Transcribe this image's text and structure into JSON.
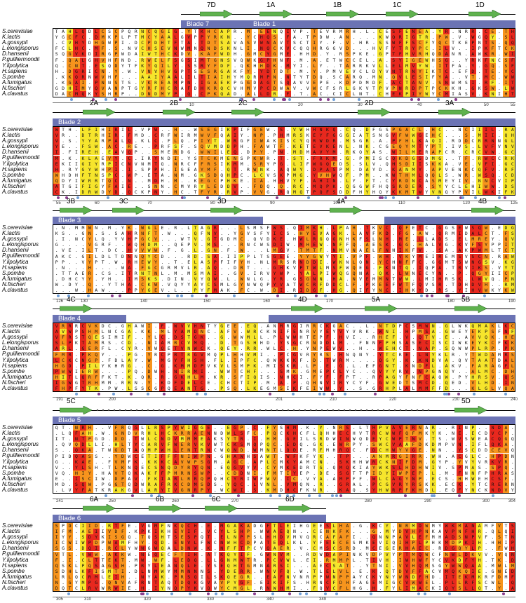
{
  "species": [
    "S.cerevisiae",
    "K.lactis",
    "A.gossypii",
    "L.elongisporus",
    "D.hansenii",
    "P.guilliermondii",
    "Y.lipolytica",
    "H.sapiens",
    "S.pombe",
    "A.fumigatus",
    "N.fischeri",
    "A.clavatus"
  ],
  "colors": {
    "red": "#e8281e",
    "orange": "#f7941d",
    "yellow": "#f6e52c",
    "white": "#ffffff",
    "blade": "#6b73b4",
    "arrow": "#5fb24e",
    "dot_blue": "#6f9fd8",
    "dot_purple": "#8a3d8f"
  },
  "panels": [
    {
      "strands": [
        {
          "label": "7D",
          "x": 285
        },
        {
          "label": "1A",
          "x": 370
        },
        {
          "label": "1B",
          "x": 465
        },
        {
          "label": "1C",
          "x": 550
        },
        {
          "label": "1D",
          "x": 668
        }
      ],
      "blades": [
        {
          "label": "Blade 7",
          "x": 258,
          "w": 95
        },
        {
          "label": "Blade 1",
          "x": 353,
          "w": 382
        }
      ],
      "ticks": [
        {
          "label": "10",
          "x": 270
        },
        {
          "label": "20",
          "x": 425
        },
        {
          "label": "30",
          "x": 510
        },
        {
          "label": "40",
          "x": 595
        },
        {
          "label": "50",
          "x": 690
        },
        {
          "label": "55",
          "x": 728
        }
      ],
      "seed": 11
    },
    {
      "strands": [
        {
          "label": "2A",
          "x": 118
        },
        {
          "label": "2B",
          "x": 232
        },
        {
          "label": "2C",
          "x": 330
        },
        {
          "label": "2D",
          "x": 510
        },
        {
          "label": "3A",
          "x": 625
        }
      ],
      "blades": [
        {
          "label": "Blade 2",
          "x": 75,
          "w": 660
        }
      ],
      "ticks": [
        {
          "label": "55",
          "x": 80
        },
        {
          "label": "60",
          "x": 135
        },
        {
          "label": "70",
          "x": 210
        },
        {
          "label": "80",
          "x": 300
        },
        {
          "label": "90",
          "x": 385
        },
        {
          "label": "100",
          "x": 475
        },
        {
          "label": "110",
          "x": 568
        },
        {
          "label": "120",
          "x": 660
        },
        {
          "label": "125",
          "x": 728
        }
      ],
      "seed": 23
    },
    {
      "strands": [
        {
          "label": "3B",
          "x": 85
        },
        {
          "label": "3C",
          "x": 160
        },
        {
          "label": "3D",
          "x": 300
        },
        {
          "label": "4A",
          "x": 470
        },
        {
          "label": "4B",
          "x": 672
        }
      ],
      "blades": [
        {
          "label": "Blade 3",
          "x": 75,
          "w": 300
        },
        {
          "label": "",
          "x": 548,
          "w": 187
        }
      ],
      "ticks": [
        {
          "label": "126",
          "x": 80
        },
        {
          "label": "130",
          "x": 115
        },
        {
          "label": "140",
          "x": 200
        },
        {
          "label": "150",
          "x": 290
        },
        {
          "label": "160",
          "x": 375
        },
        {
          "label": "170",
          "x": 465
        },
        {
          "label": "180",
          "x": 638
        },
        {
          "label": "190",
          "x": 725
        }
      ],
      "seed": 37
    },
    {
      "strands": [
        {
          "label": "4C",
          "x": 85
        },
        {
          "label": "4D",
          "x": 415
        },
        {
          "label": "5A",
          "x": 520
        },
        {
          "label": "5B",
          "x": 648
        }
      ],
      "blades": [
        {
          "label": "Blade 4",
          "x": 75,
          "w": 105
        },
        {
          "label": "",
          "x": 383,
          "w": 352
        }
      ],
      "ticks": [
        {
          "label": "191",
          "x": 80
        },
        {
          "label": "200",
          "x": 155
        },
        {
          "label": "201",
          "x": 393
        },
        {
          "label": "210",
          "x": 470
        },
        {
          "label": "220",
          "x": 555
        },
        {
          "label": "230",
          "x": 645
        },
        {
          "label": "240",
          "x": 728
        }
      ],
      "seed": 51
    },
    {
      "strands": [
        {
          "label": "5C",
          "x": 85
        },
        {
          "label": "5D",
          "x": 648
        }
      ],
      "blades": [
        {
          "label": "Blade 5",
          "x": 75,
          "w": 660
        }
      ],
      "ticks": [
        {
          "label": "241",
          "x": 80
        },
        {
          "label": "250",
          "x": 155
        },
        {
          "label": "260",
          "x": 245
        },
        {
          "label": "270",
          "x": 330
        },
        {
          "label": "280",
          "x": 520
        },
        {
          "label": "290",
          "x": 605
        },
        {
          "label": "300",
          "x": 688
        },
        {
          "label": "304",
          "x": 725
        }
      ],
      "seed": 67
    },
    {
      "strands": [
        {
          "label": "6A",
          "x": 118
        },
        {
          "label": "6B",
          "x": 212
        },
        {
          "label": "6C",
          "x": 292
        },
        {
          "label": "6D",
          "x": 397
        }
      ],
      "blades": [
        {
          "label": "Blade 6",
          "x": 75,
          "w": 390
        }
      ],
      "ticks": [
        {
          "label": "305",
          "x": 80
        },
        {
          "label": "310",
          "x": 120
        },
        {
          "label": "320",
          "x": 205
        },
        {
          "label": "330",
          "x": 295
        },
        {
          "label": "340",
          "x": 380
        },
        {
          "label": "349",
          "x": 455
        }
      ],
      "seed": 79
    }
  ]
}
